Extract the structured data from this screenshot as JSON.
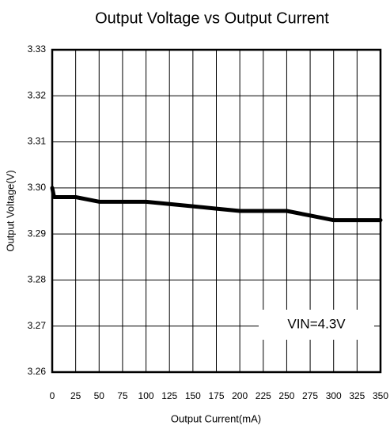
{
  "chart_data": {
    "type": "line",
    "title": "Output Voltage vs Output Current",
    "xlabel": "Output Current(mA)",
    "ylabel": "Output Voltage(V)",
    "x": [
      0,
      2,
      5,
      25,
      50,
      75,
      100,
      125,
      150,
      175,
      200,
      225,
      250,
      275,
      300,
      325,
      350
    ],
    "series": [
      {
        "name": "VIN=4.3V",
        "color": "#000000",
        "values": [
          3.3,
          3.298,
          3.298,
          3.298,
          3.297,
          3.297,
          3.297,
          3.2965,
          3.296,
          3.2955,
          3.295,
          3.295,
          3.295,
          3.294,
          3.293,
          3.293,
          3.293
        ]
      }
    ],
    "annotation": "VIN=4.3V",
    "xlim": [
      0,
      350
    ],
    "xticks": [
      0,
      25,
      50,
      75,
      100,
      125,
      150,
      175,
      200,
      225,
      250,
      275,
      300,
      325,
      350
    ],
    "ylim": [
      3.26,
      3.33
    ],
    "yticks": [
      3.26,
      3.27,
      3.28,
      3.29,
      {
        "value": 3.3,
        "label": "3.30"
      },
      3.31,
      3.32,
      3.33
    ],
    "grid": true
  }
}
